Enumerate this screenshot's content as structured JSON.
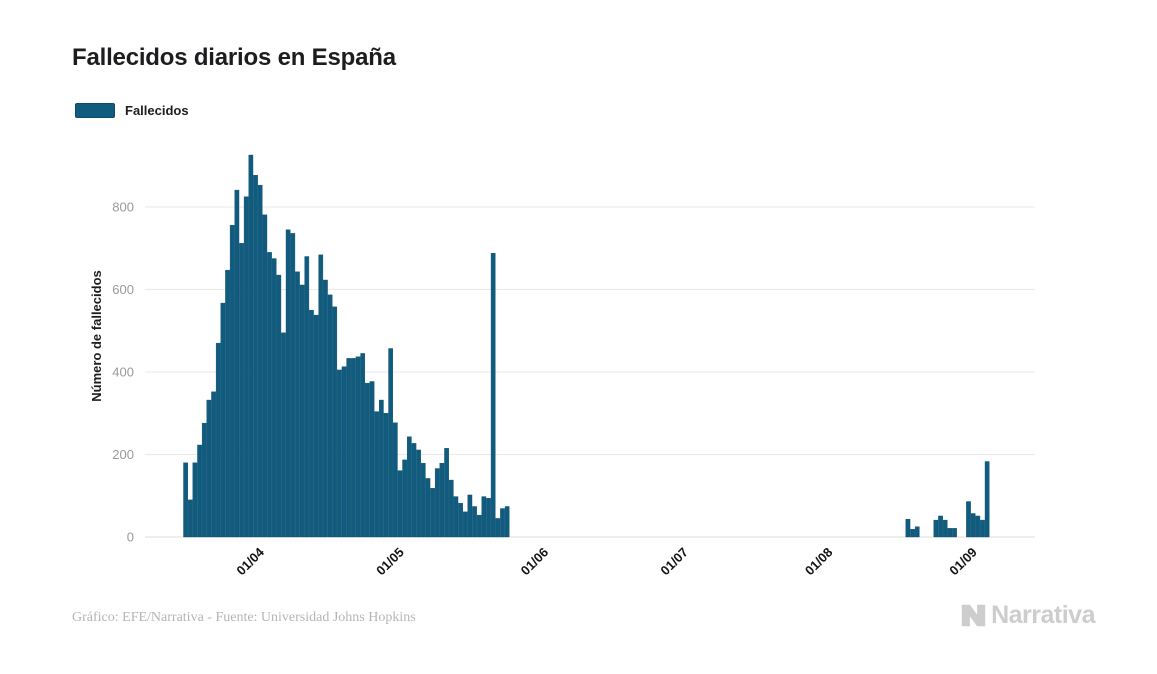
{
  "title": "Fallecidos diarios en España",
  "legend": {
    "label": "Fallecidos"
  },
  "y_axis": {
    "title": "Número de fallecidos",
    "ticks": [
      0,
      200,
      400,
      600,
      800
    ]
  },
  "x_axis": {
    "tick_labels": [
      "01/04",
      "01/05",
      "01/06",
      "01/07",
      "01/08",
      "01/09"
    ]
  },
  "footer": {
    "credit": "Gráfico: EFE/Narrativa - Fuente: Universidad Johns Hopkins"
  },
  "logo": {
    "text": "Narrativa"
  },
  "colors": {
    "bar_fill": "#115b7e",
    "bar_stroke": "#0d5070",
    "gridline": "#e9e9e9",
    "baseline": "#dedede",
    "tick_text": "#999999",
    "axis_text": "#141414"
  },
  "chart_data": {
    "type": "bar",
    "title": "Fallecidos diarios en España",
    "series_name": "Fallecidos",
    "xlabel": "",
    "ylabel": "Número de fallecidos",
    "ylim": [
      0,
      950
    ],
    "y_ticks": [
      0,
      200,
      400,
      600,
      800
    ],
    "grid": true,
    "legend_position": "top-left",
    "x_tick_labels": [
      "01/04",
      "01/05",
      "01/06",
      "01/07",
      "01/08",
      "01/09"
    ],
    "dates": [
      "18/03",
      "19/03",
      "20/03",
      "21/03",
      "22/03",
      "23/03",
      "24/03",
      "25/03",
      "26/03",
      "27/03",
      "28/03",
      "29/03",
      "30/03",
      "31/03",
      "01/04",
      "02/04",
      "03/04",
      "04/04",
      "05/04",
      "06/04",
      "07/04",
      "08/04",
      "09/04",
      "10/04",
      "11/04",
      "12/04",
      "13/04",
      "14/04",
      "15/04",
      "16/04",
      "17/04",
      "18/04",
      "19/04",
      "20/04",
      "21/04",
      "22/04",
      "23/04",
      "24/04",
      "25/04",
      "26/04",
      "27/04",
      "28/04",
      "29/04",
      "30/04",
      "01/05",
      "02/05",
      "03/05",
      "04/05",
      "05/05",
      "06/05",
      "07/05",
      "08/05",
      "09/05",
      "10/05",
      "11/05",
      "12/05",
      "13/05",
      "14/05",
      "15/05",
      "16/05",
      "17/05",
      "18/05",
      "19/05",
      "20/05",
      "21/05",
      "22/05",
      "23/05",
      "24/05",
      "25/05",
      "26/05",
      "27/05",
      "28/05",
      "29/05",
      "30/05",
      "31/05",
      "01/06",
      "02/06",
      "03/06",
      "04/06",
      "05/06",
      "06/06",
      "07/06",
      "08/06",
      "09/06",
      "10/06",
      "11/06",
      "12/06",
      "13/06",
      "14/06",
      "15/06",
      "16/06",
      "17/06",
      "18/06",
      "19/06",
      "20/06",
      "21/06",
      "22/06",
      "23/06",
      "24/06",
      "25/06",
      "26/06",
      "27/06",
      "28/06",
      "29/06",
      "30/06",
      "01/07",
      "02/07",
      "03/07",
      "04/07",
      "05/07",
      "06/07",
      "07/07",
      "08/07",
      "09/07",
      "10/07",
      "11/07",
      "12/07",
      "13/07",
      "14/07",
      "15/07",
      "16/07",
      "17/07",
      "18/07",
      "19/07",
      "20/07",
      "21/07",
      "22/07",
      "23/07",
      "24/07",
      "25/07",
      "26/07",
      "27/07",
      "28/07",
      "29/07",
      "30/07",
      "31/07",
      "01/08",
      "02/08",
      "03/08",
      "04/08",
      "05/08",
      "06/08",
      "07/08",
      "08/08",
      "09/08",
      "10/08",
      "11/08",
      "12/08",
      "13/08",
      "14/08",
      "15/08",
      "16/08",
      "17/08",
      "18/08",
      "19/08",
      "20/08",
      "21/08",
      "22/08",
      "23/08",
      "24/08",
      "25/08",
      "26/08",
      "27/08",
      "28/08",
      "29/08",
      "30/08",
      "31/08",
      "01/09",
      "02/09",
      "03/09",
      "04/09",
      "05/09",
      "06/09",
      "07/09",
      "08/09",
      "09/09",
      "10/09"
    ],
    "values": [
      180,
      90,
      180,
      223,
      276,
      332,
      352,
      470,
      567,
      647,
      756,
      841,
      712,
      825,
      926,
      877,
      853,
      781,
      690,
      675,
      635,
      495,
      745,
      736,
      643,
      611,
      680,
      550,
      538,
      684,
      623,
      587,
      558,
      405,
      413,
      433,
      433,
      437,
      445,
      373,
      377,
      304,
      332,
      300,
      457,
      277,
      161,
      187,
      243,
      227,
      211,
      179,
      142,
      118,
      166,
      179,
      215,
      138,
      98,
      82,
      61,
      102,
      74,
      53,
      98,
      94,
      688,
      45,
      69,
      74,
      0,
      0,
      0,
      0,
      0,
      0,
      0,
      0,
      0,
      0,
      0,
      0,
      0,
      0,
      0,
      0,
      0,
      0,
      0,
      0,
      0,
      0,
      0,
      0,
      0,
      0,
      0,
      0,
      0,
      0,
      0,
      0,
      0,
      0,
      0,
      0,
      0,
      0,
      0,
      0,
      0,
      0,
      0,
      0,
      0,
      0,
      0,
      0,
      0,
      0,
      0,
      0,
      0,
      0,
      0,
      0,
      0,
      0,
      0,
      0,
      0,
      0,
      0,
      0,
      0,
      0,
      0,
      0,
      0,
      0,
      0,
      0,
      0,
      0,
      0,
      0,
      0,
      0,
      0,
      0,
      0,
      0,
      0,
      0,
      0,
      43,
      19,
      25,
      0,
      0,
      0,
      41,
      51,
      41,
      21,
      21,
      0,
      0,
      86,
      57,
      51,
      41,
      183,
      0,
      0,
      0,
      0,
      0
    ]
  }
}
